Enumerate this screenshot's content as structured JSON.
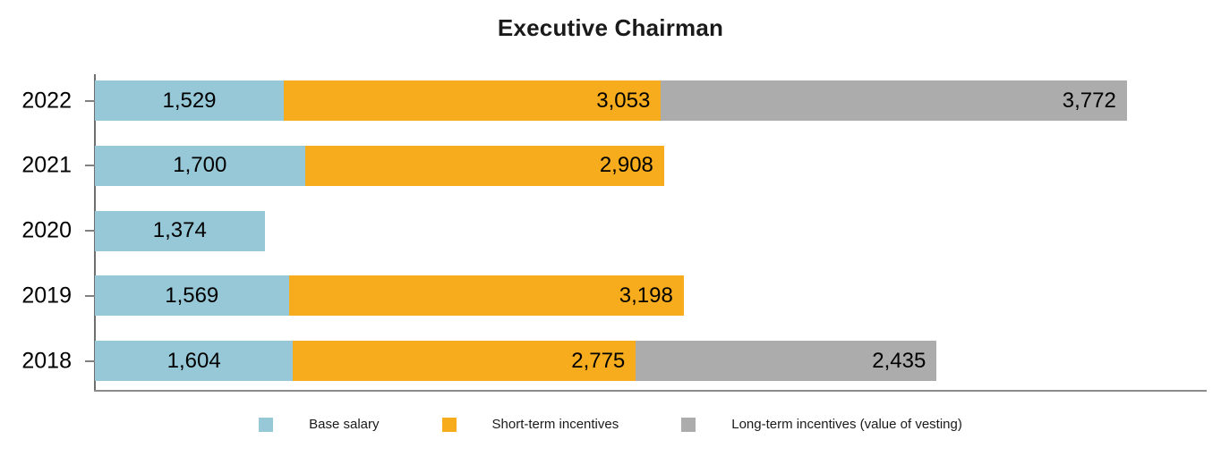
{
  "title": "Executive Chairman",
  "colors": {
    "base_salary": "#96C8D8",
    "short_term_incentives": "#F6AC1D",
    "long_term_incentives": "#ACACAC",
    "axis_vertical": "#6e6e6e",
    "axis_horizontal": "#8c8c8c",
    "text": "#000000"
  },
  "chart_data": {
    "type": "bar",
    "orientation": "horizontal",
    "stacked": true,
    "title": "Executive Chairman",
    "categories": [
      "2022",
      "2021",
      "2020",
      "2019",
      "2018"
    ],
    "series": [
      {
        "name": "Base salary",
        "color": "#96C8D8",
        "values": [
          1529,
          1700,
          1374,
          1569,
          1604
        ]
      },
      {
        "name": "Short-term incentives",
        "color": "#F6AC1D",
        "values": [
          3053,
          2908,
          null,
          3198,
          2775
        ]
      },
      {
        "name": "Long-term incentives (value of vesting)",
        "color": "#ACACAC",
        "values": [
          3772,
          null,
          null,
          null,
          2435
        ]
      }
    ],
    "value_labels": {
      "2022": [
        "1,529",
        "3,053",
        "3,772"
      ],
      "2021": [
        "1,700",
        "2,908"
      ],
      "2020": [
        "1,374"
      ],
      "2019": [
        "1,569",
        "3,198"
      ],
      "2018": [
        "1,604",
        "2,775",
        "2,435"
      ]
    },
    "xlim": [
      0,
      9000
    ],
    "grid": false,
    "legend_position": "bottom"
  },
  "legend": {
    "items": [
      {
        "label": "Base salary",
        "color": "#96C8D8"
      },
      {
        "label": "Short-term incentives",
        "color": "#F6AC1D"
      },
      {
        "label": "Long-term incentives (value of vesting)",
        "color": "#ACACAC"
      }
    ]
  }
}
